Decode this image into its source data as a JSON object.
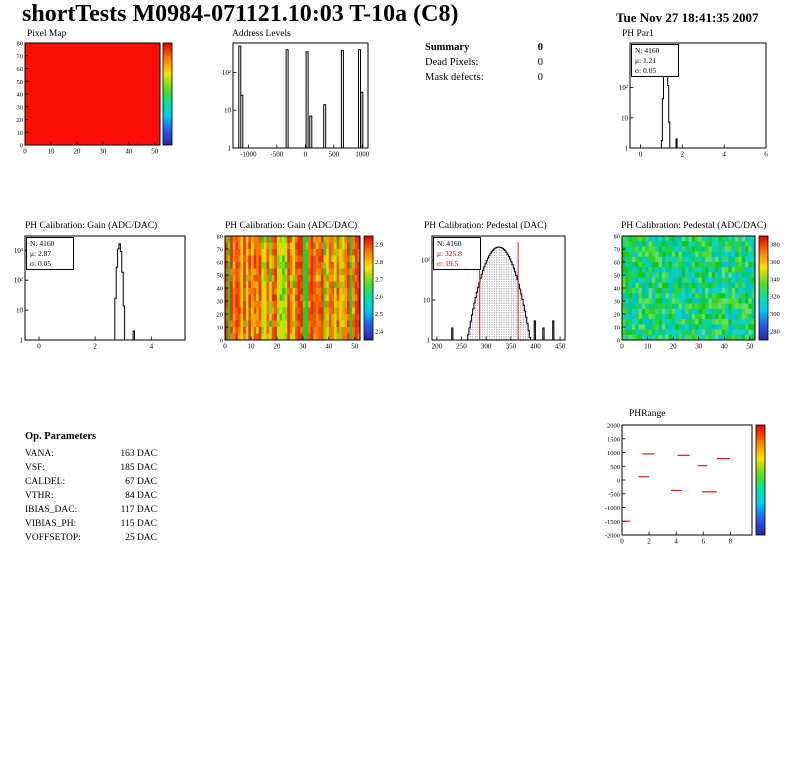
{
  "header": {
    "title": "shortTests M0984-071121.10:03 T-10a (C8)",
    "datetime": "Tue Nov 27 18:41:35 2007"
  },
  "summary": {
    "title": "Summary",
    "total": "0",
    "rows": [
      {
        "label": "Dead Pixels:",
        "value": "0"
      },
      {
        "label": "Mask defects:",
        "value": "0"
      }
    ]
  },
  "op_parameters": {
    "title": "Op. Parameters",
    "rows": [
      {
        "label": "VANA:",
        "value": "163 DAC"
      },
      {
        "label": "VSF:",
        "value": "185 DAC"
      },
      {
        "label": "CALDEL:",
        "value": "67 DAC"
      },
      {
        "label": "VTHR:",
        "value": "84 DAC"
      },
      {
        "label": "IBIAS_DAC:",
        "value": "117 DAC"
      },
      {
        "label": "VIBIAS_PH:",
        "value": "115 DAC"
      },
      {
        "label": "VOFFSETOP:",
        "value": "25 DAC"
      }
    ]
  },
  "chart_data": [
    {
      "type": "heatmap",
      "renderer": "uniform",
      "title": "Pixel Map",
      "x_range": [
        0,
        52
      ],
      "y_range": [
        0,
        80
      ],
      "x_ticks": [
        0,
        10,
        20,
        30,
        40,
        50
      ],
      "y_ticks": [
        0,
        10,
        20,
        30,
        40,
        50,
        60,
        70,
        80
      ],
      "uniform_color": "#fb0e06",
      "note": "all pixels uniform value, no defects",
      "colorbar": true,
      "colorbar_ticks": []
    },
    {
      "type": "bar",
      "renderer": "spikes",
      "title": "Address Levels",
      "x_range": [
        -1270,
        1100
      ],
      "x_ticks": [
        -1000,
        -500,
        0,
        500,
        1000
      ],
      "ylog": true,
      "y_max": 600,
      "y_tick_values": [
        1,
        10,
        100
      ],
      "y_tick_labels": [
        "1",
        "10",
        "10²"
      ],
      "peaks": [
        [
          -1150,
          500
        ],
        [
          -1115,
          25
        ],
        [
          -320,
          400
        ],
        [
          30,
          350
        ],
        [
          95,
          7
        ],
        [
          340,
          14
        ],
        [
          650,
          380
        ],
        [
          950,
          400
        ],
        [
          992,
          30
        ]
      ]
    },
    {
      "type": "histogram",
      "renderer": "gauss",
      "title": "PH Par1",
      "stats": [
        "N: 4160",
        "μ: 1.21",
        "σ: 0.05"
      ],
      "n": 4160,
      "mu": 1.21,
      "sigma": 0.05,
      "bin_width": 0.05,
      "x_range": [
        -0.5,
        6
      ],
      "x_ticks": [
        0,
        2,
        4,
        6
      ],
      "ylog": true,
      "y_max": 3000,
      "y_tick_values": [
        1,
        10,
        100
      ],
      "y_tick_labels": [
        "1",
        "10",
        "10²"
      ],
      "extra_bars": [
        [
          1.7,
          2
        ]
      ]
    },
    {
      "type": "histogram",
      "renderer": "gauss",
      "title": "PH Calibration: Gain (ADC/DAC)",
      "stats": [
        "N: 4160",
        "μ: 2.87",
        "σ: 0.05"
      ],
      "n": 4160,
      "mu": 2.87,
      "sigma": 0.05,
      "bin_width": 0.05,
      "x_range": [
        -0.5,
        5.2
      ],
      "x_ticks": [
        0,
        2,
        4
      ],
      "ylog": true,
      "y_max": 3000,
      "y_tick_values": [
        1,
        10,
        100,
        1000
      ],
      "y_tick_labels": [
        "1",
        "10",
        "10²",
        "10³"
      ],
      "extra_bars": [
        [
          3.35,
          2
        ]
      ]
    },
    {
      "type": "heatmap",
      "renderer": "stripes",
      "title": "PH Calibration: Gain (ADC/DAC)",
      "x_range": [
        0,
        52
      ],
      "y_range": [
        0,
        80
      ],
      "x_ticks": [
        0,
        10,
        20,
        30,
        40,
        50
      ],
      "y_ticks": [
        0,
        10,
        20,
        30,
        40,
        50,
        60,
        70,
        80
      ],
      "colorbar": true,
      "colorbar_ticks": [
        "2.9",
        "2.8",
        "2.7",
        "2.6",
        "2.5",
        "2.4"
      ],
      "palette": [
        "#e63000",
        "#f25400",
        "#f57a00",
        "#f7a300",
        "#efd500",
        "#c3e300",
        "#7fd800",
        "#2fc72f"
      ],
      "seed": 7
    },
    {
      "type": "histogram",
      "renderer": "gauss",
      "title": "PH Calibration: Pedestal (DAC)",
      "stats": [
        "N: 4160",
        "μ: 325.8",
        "σ: 19.5"
      ],
      "n": 4160,
      "mu": 325.8,
      "sigma": 19.5,
      "bin_width": 2.5,
      "x_range": [
        190,
        460
      ],
      "x_ticks": [
        200,
        250,
        300,
        350,
        400,
        450
      ],
      "ylog": true,
      "y_max": 400,
      "y_tick_values": [
        1,
        10,
        100
      ],
      "y_tick_labels": [
        "1",
        "10",
        "10²"
      ],
      "dotted_fill": true,
      "red_lines": [
        286.8,
        364.8
      ],
      "extra_bars": [
        [
          232,
          2
        ],
        [
          247,
          1
        ],
        [
          398,
          3
        ],
        [
          416,
          2
        ],
        [
          437,
          3
        ]
      ]
    },
    {
      "type": "heatmap",
      "renderer": "noise",
      "title": "PH Calibration: Pedestal (ADC/DAC)",
      "x_range": [
        0,
        52
      ],
      "y_range": [
        0,
        80
      ],
      "x_ticks": [
        0,
        10,
        20,
        30,
        40,
        50
      ],
      "y_ticks": [
        0,
        10,
        20,
        30,
        40,
        50,
        60,
        70,
        80
      ],
      "colorbar": true,
      "colorbar_ticks": [
        "380",
        "360",
        "340",
        "320",
        "300",
        "280"
      ],
      "palette": [
        "#13c913",
        "#2ed32e",
        "#0ccf6e",
        "#0bd3a4",
        "#12d0cf",
        "#4ddb3a",
        "#0abede",
        "#63e063",
        "#00c894"
      ],
      "seed": 13
    },
    {
      "type": "scatter",
      "renderer": "segments",
      "title": "PHRange",
      "x_range": [
        0,
        9.6
      ],
      "x_ticks": [
        0,
        2,
        4,
        6,
        8
      ],
      "y_range": [
        -2000,
        2000
      ],
      "y_ticks": [
        2000,
        1500,
        1000,
        500,
        0,
        -500,
        -1000,
        -1500,
        -2000
      ],
      "colorbar": true,
      "colorbar_ticks": [],
      "marker_color": "#cc2222",
      "segments": [
        [
          1.5,
          2.4,
          950
        ],
        [
          4.1,
          5.0,
          900
        ],
        [
          5.6,
          6.3,
          520
        ],
        [
          7.0,
          8.0,
          780
        ],
        [
          1.2,
          2.0,
          120
        ],
        [
          3.6,
          4.4,
          -380
        ],
        [
          5.9,
          7.0,
          -430
        ],
        [
          0.1,
          0.6,
          -1500
        ]
      ]
    }
  ]
}
